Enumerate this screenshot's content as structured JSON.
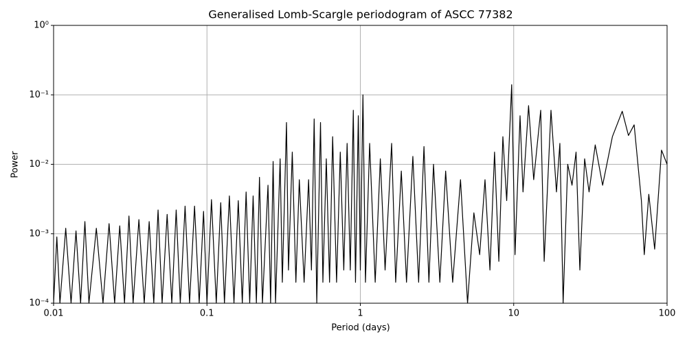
{
  "chart_data": {
    "type": "line",
    "title": "Generalised Lomb-Scargle periodogram of ASCC 77382",
    "xlabel": "Period (days)",
    "ylabel": "Power",
    "xscale": "log",
    "yscale": "log",
    "grid": true,
    "color": "#000000",
    "xlim": [
      0.01,
      100
    ],
    "ylim": [
      0.0001,
      1
    ],
    "xticks": [
      0.01,
      0.1,
      1,
      10,
      100
    ],
    "yticks": [
      {
        "value": 0.0001,
        "label": "10⁻⁴"
      },
      {
        "value": 0.001,
        "label": "10⁻³"
      },
      {
        "value": 0.01,
        "label": "10⁻²"
      },
      {
        "value": 0.1,
        "label": "10⁻¹"
      },
      {
        "value": 1,
        "label": "10⁰"
      }
    ],
    "x": [
      0.01,
      0.0105,
      0.011,
      0.012,
      0.013,
      0.014,
      0.015,
      0.016,
      0.017,
      0.019,
      0.021,
      0.023,
      0.025,
      0.027,
      0.029,
      0.031,
      0.033,
      0.036,
      0.039,
      0.042,
      0.045,
      0.048,
      0.051,
      0.055,
      0.059,
      0.063,
      0.067,
      0.072,
      0.077,
      0.083,
      0.089,
      0.095,
      0.1,
      0.107,
      0.115,
      0.123,
      0.13,
      0.14,
      0.15,
      0.16,
      0.17,
      0.18,
      0.19,
      0.2,
      0.21,
      0.22,
      0.23,
      0.25,
      0.26,
      0.27,
      0.28,
      0.3,
      0.31,
      0.33,
      0.34,
      0.36,
      0.38,
      0.4,
      0.43,
      0.46,
      0.48,
      0.5,
      0.52,
      0.55,
      0.57,
      0.6,
      0.63,
      0.66,
      0.7,
      0.74,
      0.78,
      0.82,
      0.86,
      0.9,
      0.93,
      0.97,
      1.0,
      1.04,
      1.08,
      1.15,
      1.25,
      1.35,
      1.45,
      1.6,
      1.7,
      1.85,
      2.0,
      2.2,
      2.4,
      2.6,
      2.8,
      3.0,
      3.3,
      3.6,
      4.0,
      4.5,
      5.0,
      5.5,
      6.0,
      6.5,
      7.0,
      7.5,
      8.0,
      8.5,
      9.0,
      9.7,
      10.2,
      11.0,
      11.5,
      12.5,
      13.5,
      15.0,
      15.8,
      17.5,
      19.0,
      20.0,
      21.0,
      22.5,
      24.0,
      25.5,
      27.0,
      29.0,
      31.0,
      34.0,
      38.0,
      44.0,
      51.0,
      56.0,
      61.0,
      68.0,
      71.0,
      76.0,
      83.0,
      92.0,
      100.0
    ],
    "values": [
      0.0001,
      0.0009,
      0.0001,
      0.0012,
      0.0001,
      0.0011,
      0.0001,
      0.0015,
      0.0001,
      0.0012,
      0.0001,
      0.0014,
      0.0001,
      0.0013,
      0.0001,
      0.0018,
      0.0001,
      0.0016,
      0.0001,
      0.0015,
      0.0001,
      0.0022,
      0.0001,
      0.0019,
      0.0001,
      0.0022,
      0.0001,
      0.0025,
      0.0001,
      0.0025,
      0.0001,
      0.0021,
      0.0001,
      0.0031,
      0.0001,
      0.0028,
      0.0001,
      0.0035,
      0.0001,
      0.003,
      0.0001,
      0.004,
      0.0001,
      0.0035,
      0.0001,
      0.0065,
      0.0001,
      0.005,
      0.0001,
      0.011,
      0.0001,
      0.012,
      0.0002,
      0.04,
      0.0003,
      0.015,
      0.0002,
      0.006,
      0.0002,
      0.006,
      0.0003,
      0.045,
      0.0001,
      0.04,
      0.0002,
      0.012,
      0.0002,
      0.025,
      0.0002,
      0.015,
      0.0003,
      0.02,
      0.0003,
      0.06,
      0.0002,
      0.05,
      0.0003,
      0.1,
      0.0002,
      0.02,
      0.0002,
      0.012,
      0.0003,
      0.02,
      0.0002,
      0.008,
      0.0002,
      0.013,
      0.0002,
      0.018,
      0.0002,
      0.01,
      0.0002,
      0.008,
      0.0002,
      0.006,
      0.0001,
      0.002,
      0.0005,
      0.006,
      0.0003,
      0.015,
      0.0004,
      0.025,
      0.003,
      0.14,
      0.0005,
      0.05,
      0.004,
      0.07,
      0.006,
      0.06,
      0.0004,
      0.06,
      0.004,
      0.02,
      0.0001,
      0.01,
      0.005,
      0.015,
      0.0003,
      0.012,
      0.004,
      0.019,
      0.005,
      0.025,
      0.058,
      0.026,
      0.037,
      0.003,
      0.0005,
      0.0037,
      0.0006,
      0.016,
      0.01
    ]
  }
}
